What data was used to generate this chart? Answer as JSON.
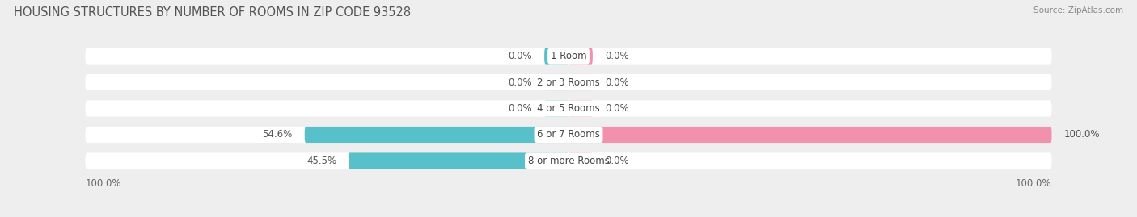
{
  "title": "HOUSING STRUCTURES BY NUMBER OF ROOMS IN ZIP CODE 93528",
  "source": "Source: ZipAtlas.com",
  "categories": [
    "1 Room",
    "2 or 3 Rooms",
    "4 or 5 Rooms",
    "6 or 7 Rooms",
    "8 or more Rooms"
  ],
  "owner_values": [
    0.0,
    0.0,
    0.0,
    54.6,
    45.5
  ],
  "renter_values": [
    0.0,
    0.0,
    0.0,
    100.0,
    0.0
  ],
  "owner_color": "#3AB5C0",
  "renter_color": "#F07EA0",
  "bg_color": "#EEEEEE",
  "bar_bg_color": "#FFFFFF",
  "min_stub": 5.0,
  "title_fontsize": 10.5,
  "label_fontsize": 8.5,
  "category_fontsize": 8.5,
  "legend_fontsize": 9,
  "axis_label_fontsize": 8.5,
  "bottom_labels": [
    "100.0%",
    "100.0%"
  ]
}
